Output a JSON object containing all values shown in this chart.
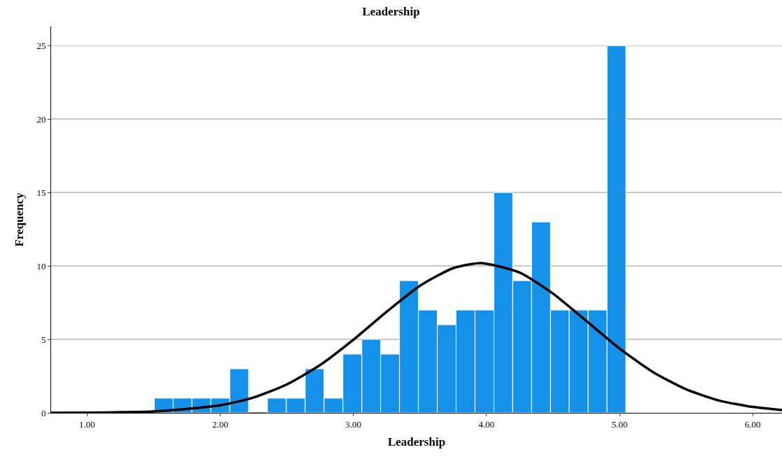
{
  "chart_data": {
    "type": "histogram",
    "title": "Leadership",
    "xlabel": "Leadership",
    "ylabel": "Frequency",
    "bins": [
      1.505,
      1.647,
      1.788,
      1.93,
      2.072,
      2.213,
      2.355,
      2.497,
      2.639,
      2.78,
      2.922,
      3.064,
      3.205,
      3.347,
      3.489,
      3.631,
      3.772,
      3.914,
      4.056,
      4.197,
      4.339,
      4.481,
      4.622,
      4.764,
      4.906,
      5.047
    ],
    "values": [
      1,
      1,
      1,
      1,
      3,
      0,
      1,
      1,
      3,
      1,
      4,
      5,
      4,
      9,
      7,
      6,
      7,
      7,
      15,
      9,
      13,
      7,
      7,
      7,
      25
    ],
    "color": "#1591ea",
    "series": [
      {
        "type": "line",
        "color": "#000000",
        "x": [
          0.73,
          1.0,
          1.5,
          2.0,
          2.25,
          2.5,
          2.75,
          3.0,
          3.25,
          3.5,
          3.75,
          3.96,
          4.25,
          4.5,
          4.75,
          5.0,
          5.25,
          5.5,
          5.75,
          6.0,
          6.22
        ],
        "values": [
          0,
          0.01,
          0.09,
          0.51,
          1.04,
          1.93,
          3.25,
          4.97,
          6.88,
          8.65,
          9.85,
          10.2,
          9.55,
          8.12,
          6.26,
          4.38,
          2.78,
          1.6,
          0.83,
          0.4,
          0.19
        ]
      }
    ],
    "marker": "none",
    "line_style": "solid",
    "xlim": [
      0.73,
      6.22
    ],
    "xticks": [
      {
        "value": 1,
        "label": "1.00"
      },
      {
        "value": 2,
        "label": "2.00"
      },
      {
        "value": 3,
        "label": "3.00"
      },
      {
        "value": 4,
        "label": "4.00"
      },
      {
        "value": 5,
        "label": "5.00"
      },
      {
        "value": 6,
        "label": "6.00"
      }
    ],
    "ylim": [
      0,
      26.3
    ],
    "yticks": [
      0,
      5,
      10,
      15,
      20,
      25
    ],
    "grid": "y"
  }
}
